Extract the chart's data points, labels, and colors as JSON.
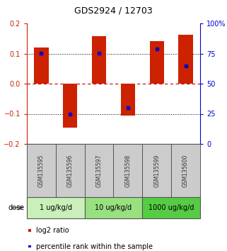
{
  "title": "GDS2924 / 12703",
  "samples": [
    "GSM135595",
    "GSM135596",
    "GSM135597",
    "GSM135598",
    "GSM135599",
    "GSM135600"
  ],
  "log2_ratios": [
    0.12,
    -0.145,
    0.158,
    -0.105,
    0.14,
    0.163
  ],
  "percentile_ranks": [
    75,
    25,
    75,
    30,
    79,
    65
  ],
  "groups": [
    {
      "label": "1 ug/kg/d",
      "indices": [
        0,
        1
      ],
      "color": "#c8f0b8"
    },
    {
      "label": "10 ug/kg/d",
      "indices": [
        2,
        3
      ],
      "color": "#98e080"
    },
    {
      "label": "1000 ug/kg/d",
      "indices": [
        4,
        5
      ],
      "color": "#55cc44"
    }
  ],
  "ylim_left": [
    -0.2,
    0.2
  ],
  "ylim_right": [
    0,
    100
  ],
  "left_yticks": [
    -0.2,
    -0.1,
    0.0,
    0.1,
    0.2
  ],
  "right_yticks": [
    0,
    25,
    50,
    75,
    100
  ],
  "right_yticklabels": [
    "0",
    "25",
    "50",
    "75",
    "100%"
  ],
  "bar_color": "#cc2200",
  "dot_color": "#0000cc",
  "hline_color_zero": "#cc0000",
  "hline_color_dotted": "#000000",
  "left_label_color": "#cc2200",
  "right_label_color": "#0000cc",
  "legend_red_label": "log2 ratio",
  "legend_blue_label": "percentile rank within the sample",
  "dose_label": "dose",
  "bar_width": 0.5,
  "sample_box_color": "#cccccc",
  "sample_label_color": "#333333",
  "group_border_color": "#555555",
  "title_fontsize": 9,
  "tick_fontsize": 7,
  "sample_fontsize": 5.5,
  "group_fontsize": 7,
  "legend_fontsize": 7
}
